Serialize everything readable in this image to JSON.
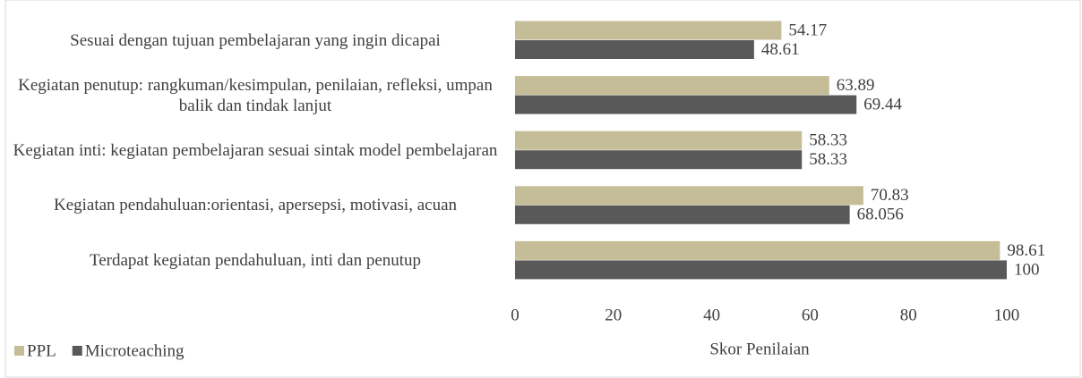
{
  "chart_data": {
    "type": "barh",
    "categories": [
      "Sesuai dengan tujuan pembelajaran yang ingin dicapai",
      "Kegiatan penutup: rangkuman/kesimpulan, penilaian, refleksi, umpan balik dan tindak lanjut",
      "Kegiatan inti: kegiatan pembelajaran sesuai sintak model pembelajaran",
      "Kegiatan pendahuluan:orientasi, apersepsi, motivasi, acuan",
      "Terdapat kegiatan pendahuluan, inti dan penutup"
    ],
    "series": [
      {
        "name": "PPL",
        "color": "#c4bd97",
        "values": [
          54.17,
          63.89,
          58.33,
          70.83,
          98.61
        ]
      },
      {
        "name": "Microteaching",
        "color": "#595959",
        "values": [
          48.61,
          69.44,
          58.33,
          68.056,
          100
        ]
      }
    ],
    "xlabel": "Skor Penilaian",
    "xlim": [
      0,
      100
    ],
    "xticks": [
      0,
      20,
      40,
      60,
      80,
      100
    ],
    "legend": "bottom-left"
  }
}
